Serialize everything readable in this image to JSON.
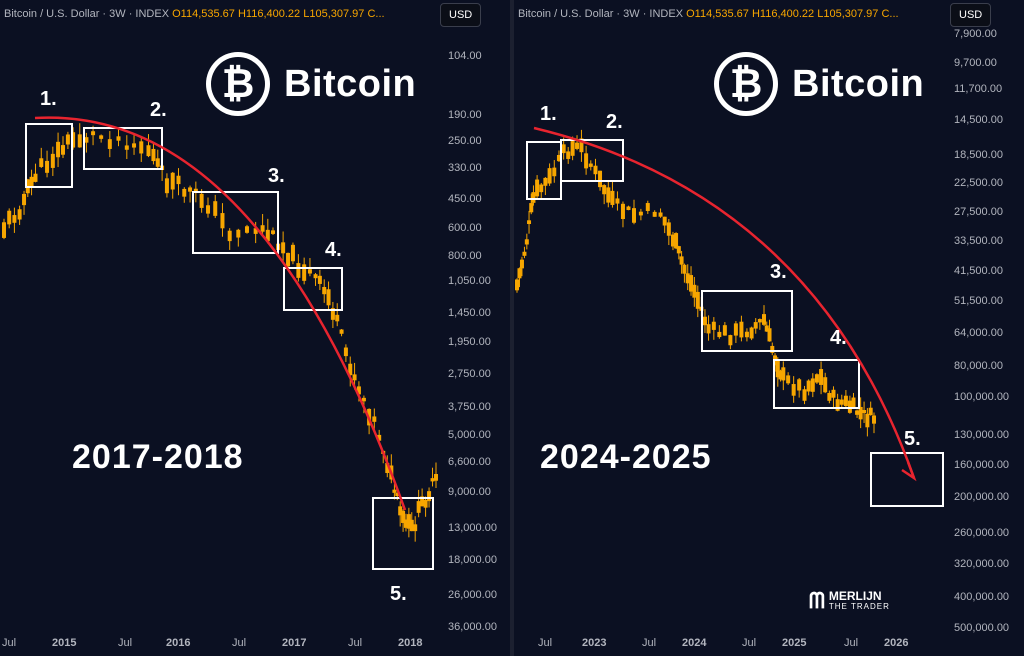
{
  "panels": [
    {
      "header": {
        "symbol": "Bitcoin / U.S. Dollar · 3W · INDEX",
        "o": "O114,535.67",
        "h": "H116,400.22",
        "l": "L105,307.97",
        "c": "C..."
      },
      "currency": "USD",
      "brand": {
        "text": "Bitcoin",
        "logo_glyph": "₿"
      },
      "years": "2017-2018",
      "box_labels": [
        "1.",
        "2.",
        "3.",
        "4.",
        "5."
      ]
    },
    {
      "header": {
        "symbol": "Bitcoin / U.S. Dollar · 3W · INDEX",
        "o": "O114,535.67",
        "h": "H116,400.22",
        "l": "L105,307.97",
        "c": "C..."
      },
      "currency": "USD",
      "brand": {
        "text": "Bitcoin",
        "logo_glyph": "₿"
      },
      "years": "2024-2025",
      "box_labels": [
        "1.",
        "2.",
        "3.",
        "4.",
        "5."
      ],
      "watermark": {
        "line1": "MERLIJN",
        "line2": "THE TRADER"
      }
    }
  ],
  "chart_data": [
    {
      "type": "candlestick",
      "yscale": "log-inverted",
      "ylabels": [
        "104.00",
        "190.00",
        "250.00",
        "330.00",
        "450.00",
        "600.00",
        "800.00",
        "1,050.00",
        "1,450.00",
        "1,950.00",
        "2,750.00",
        "3,750.00",
        "5,000.00",
        "6,600.00",
        "9,000.00",
        "13,000.00",
        "18,000.00",
        "26,000.00",
        "36,000.00"
      ],
      "xlabels": [
        "Jul",
        "2015",
        "Jul",
        "2016",
        "Jul",
        "2017",
        "Jul",
        "2018"
      ],
      "trend": "red downward curve across boxes 1-5",
      "colors": {
        "candle": "#f7a600",
        "trend": "#e8242f",
        "box": "#ffffff"
      }
    },
    {
      "type": "candlestick",
      "yscale": "log-inverted",
      "ylabels": [
        "7,900.00",
        "9,700.00",
        "11,700.00",
        "14,500.00",
        "18,500.00",
        "22,500.00",
        "27,500.00",
        "33,500.00",
        "41,500.00",
        "51,500.00",
        "64,000.00",
        "80,000.00",
        "100,000.00",
        "130,000.00",
        "160,000.00",
        "200,000.00",
        "260,000.00",
        "320,000.00",
        "400,000.00",
        "500,000.00"
      ],
      "xlabels": [
        "Jul",
        "2023",
        "Jul",
        "2024",
        "Jul",
        "2025",
        "Jul",
        "2026"
      ],
      "trend": "red downward curve with arrow into box 5",
      "colors": {
        "candle": "#f7a600",
        "trend": "#e8242f",
        "box": "#ffffff"
      }
    }
  ]
}
